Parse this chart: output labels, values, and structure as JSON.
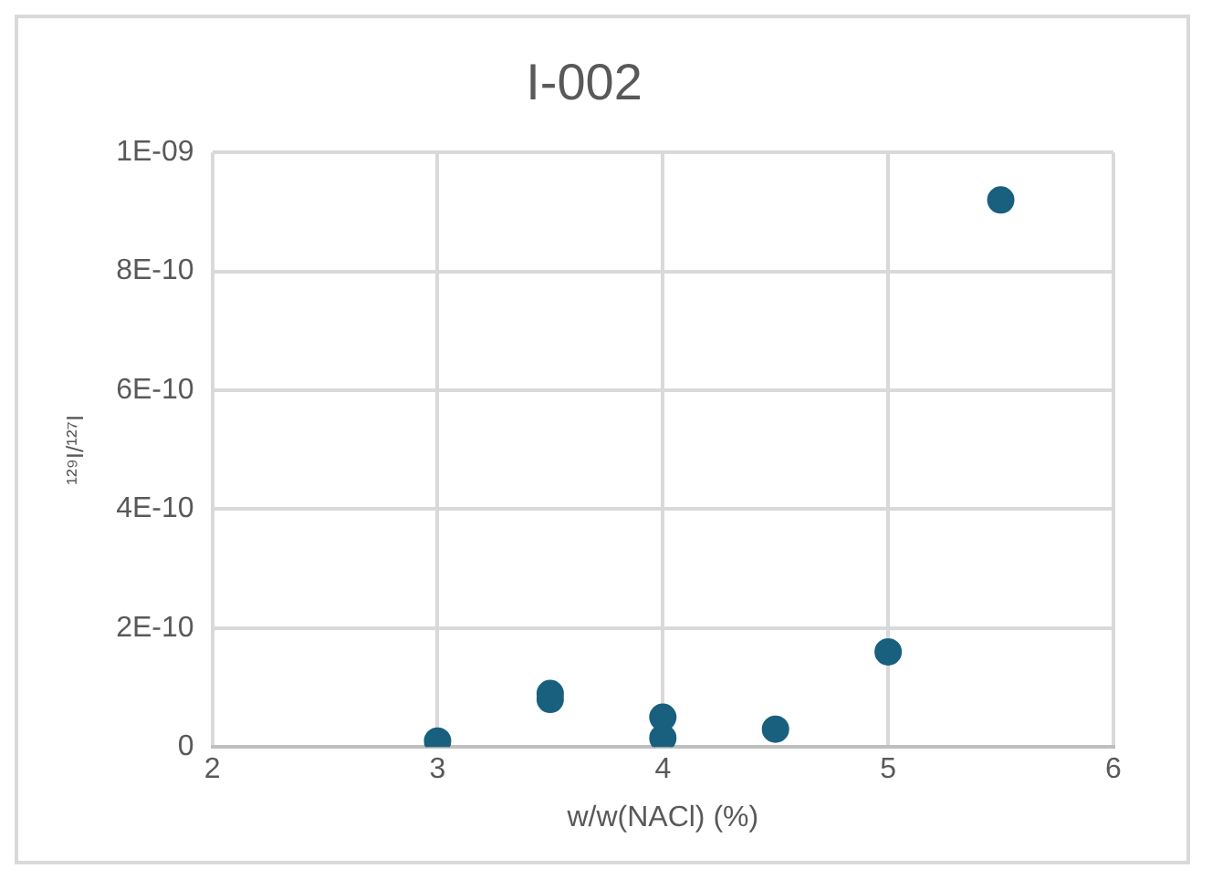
{
  "chart_data": {
    "type": "scatter",
    "title": "I-002",
    "xlabel": "w/w(NACl) (%)",
    "ylabel": "¹²⁹I/¹²⁷I",
    "x": [
      3,
      3.5,
      3.5,
      4,
      4,
      4.5,
      5,
      5.5
    ],
    "series": [
      {
        "color": "#19607f",
        "values": [
          1e-11,
          9e-11,
          8e-11,
          5e-11,
          1.5e-11,
          3e-11,
          1.6e-10,
          9.2e-10
        ]
      }
    ],
    "xlim": [
      2,
      6
    ],
    "xticks": [
      2,
      3,
      4,
      5,
      6
    ],
    "ylim": [
      0,
      1e-09
    ],
    "yticks": [
      0,
      {
        "value": 2e-10,
        "label": "2E-10"
      },
      {
        "value": 4e-10,
        "label": "4E-10"
      },
      {
        "value": 6e-10,
        "label": "6E-10"
      },
      {
        "value": 8e-10,
        "label": "8E-10"
      },
      {
        "value": 1e-09,
        "label": "1E-09"
      }
    ],
    "grid": true,
    "legend": false,
    "marker": "circle"
  }
}
